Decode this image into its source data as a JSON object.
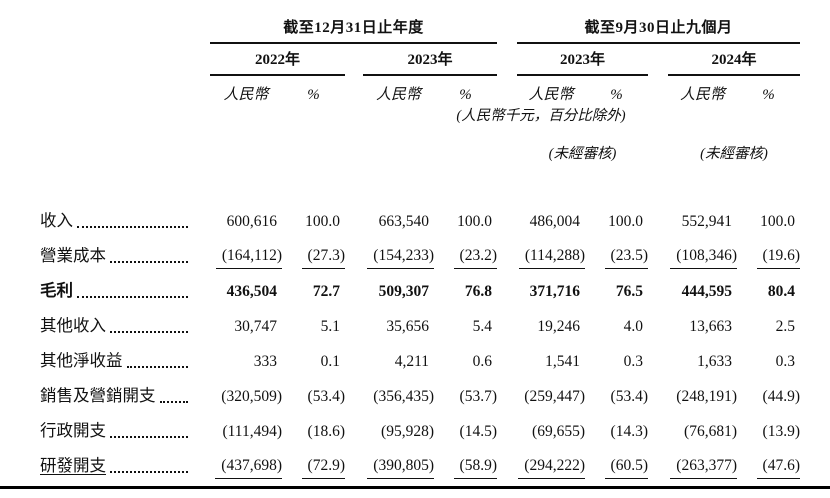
{
  "page": {
    "colors": {
      "ink": "#111111",
      "background": "#ffffff",
      "bottom_rule": "#000000"
    },
    "groups": [
      {
        "title": "截至12月31日止年度",
        "years": [
          "2022年",
          "2023年"
        ]
      },
      {
        "title": "截至9月30日止九個月",
        "years": [
          "2023年",
          "2024年"
        ]
      }
    ],
    "col_rmb": "人民幣",
    "col_pct": "%",
    "unit_note": "(人民幣千元，百分比除外)",
    "unaudited": [
      "(未經審核)",
      "(未經審核)"
    ],
    "rows": [
      {
        "label": "收入",
        "values": [
          "600,616",
          "100.0",
          "663,540",
          "100.0",
          "486,004",
          "100.0",
          "552,941",
          "100.0"
        ]
      },
      {
        "label": "營業成本",
        "underline": true,
        "values": [
          "(164,112)",
          "(27.3)",
          "(154,233)",
          "(23.2)",
          "(114,288)",
          "(23.5)",
          "(108,346)",
          "(19.6)"
        ]
      },
      {
        "label": "毛利",
        "bold": true,
        "values": [
          "436,504",
          "72.7",
          "509,307",
          "76.8",
          "371,716",
          "76.5",
          "444,595",
          "80.4"
        ]
      },
      {
        "label": "其他收入",
        "values": [
          "30,747",
          "5.1",
          "35,656",
          "5.4",
          "19,246",
          "4.0",
          "13,663",
          "2.5"
        ]
      },
      {
        "label": "其他淨收益",
        "values": [
          "333",
          "0.1",
          "4,211",
          "0.6",
          "1,541",
          "0.3",
          "1,633",
          "0.3"
        ]
      },
      {
        "label": "銷售及營銷開支",
        "values": [
          "(320,509)",
          "(53.4)",
          "(356,435)",
          "(53.7)",
          "(259,447)",
          "(53.4)",
          "(248,191)",
          "(44.9)"
        ]
      },
      {
        "label": "行政開支",
        "values": [
          "(111,494)",
          "(18.6)",
          "(95,928)",
          "(14.5)",
          "(69,655)",
          "(14.3)",
          "(76,681)",
          "(13.9)"
        ]
      },
      {
        "label": "研發開支",
        "label_underline": true,
        "underline": true,
        "values": [
          "(437,698)",
          "(72.9)",
          "(390,805)",
          "(58.9)",
          "(294,222)",
          "(60.5)",
          "(263,377)",
          "(47.6)"
        ]
      }
    ]
  }
}
